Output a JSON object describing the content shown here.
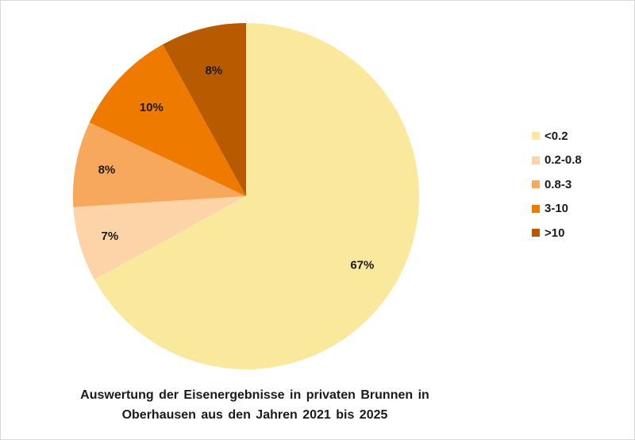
{
  "chart_data": {
    "type": "pie",
    "title_line1": "Auswertung der Eisenergebnisse in privaten Brunnen in",
    "title_line2": "Oberhausen aus den Jahren 2021 bis 2025",
    "legend_placement": "right",
    "slices": [
      {
        "label": "<0.2",
        "value": 67,
        "value_label": "67%",
        "color": "#FAE99C"
      },
      {
        "label": "0.2-0.8",
        "value": 7,
        "value_label": "7%",
        "color": "#FCD4A8"
      },
      {
        "label": "0.8-3",
        "value": 8,
        "value_label": "8%",
        "color": "#F8A85C"
      },
      {
        "label": "3-10",
        "value": 10,
        "value_label": "10%",
        "color": "#EF7A00"
      },
      {
        "label": ">10",
        "value": 8,
        "value_label": "8%",
        "color": "#B85A00"
      }
    ]
  }
}
